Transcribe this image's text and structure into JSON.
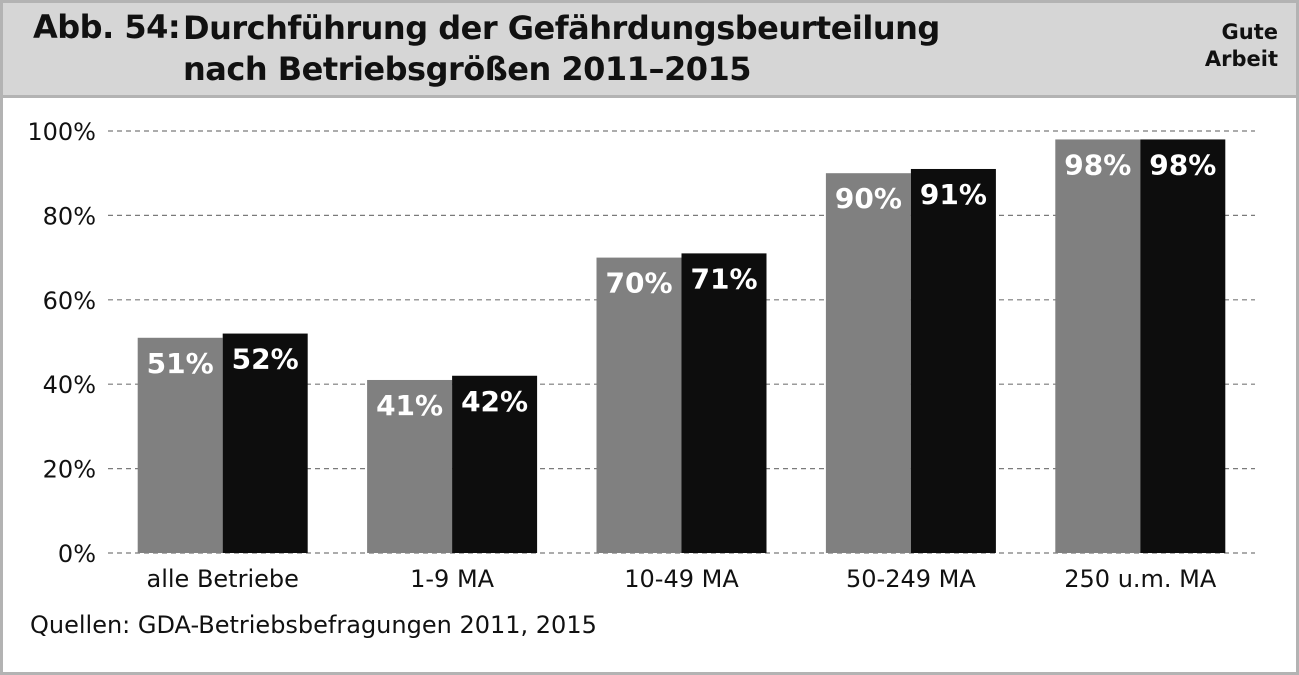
{
  "header": {
    "figure_label": "Abb. 54:",
    "title_line1": "Durchführung der Gefährdungsbeurteilung",
    "title_line2": "nach Betriebsgrößen 2011–2015",
    "brand_line1": "Gute",
    "brand_line2": "Arbeit"
  },
  "source": "Quellen: GDA-Betriebsbefragungen 2011, 2015",
  "colors": {
    "series_2011": "#808080",
    "series_2015": "#0d0d0d",
    "header_bg": "#d6d6d6",
    "frame": "#b3b3b3"
  },
  "chart_data": {
    "type": "bar",
    "categories": [
      "alle Betriebe",
      "1-9 MA",
      "10-49 MA",
      "50-249 MA",
      "250 u.m. MA"
    ],
    "series": [
      {
        "values": [
          51,
          41,
          70,
          90,
          98
        ],
        "labels": [
          "51%",
          "41%",
          "70%",
          "90%",
          "98%"
        ]
      },
      {
        "values": [
          52,
          42,
          71,
          91,
          98
        ],
        "labels": [
          "52%",
          "42%",
          "71%",
          "91%",
          "98%"
        ]
      }
    ],
    "ylim": [
      0,
      100
    ],
    "yticks": [
      0,
      20,
      40,
      60,
      80,
      100
    ],
    "ytick_labels": [
      "0%",
      "20%",
      "40%",
      "60%",
      "80%",
      "100%"
    ],
    "grid": true,
    "legend": "none"
  }
}
